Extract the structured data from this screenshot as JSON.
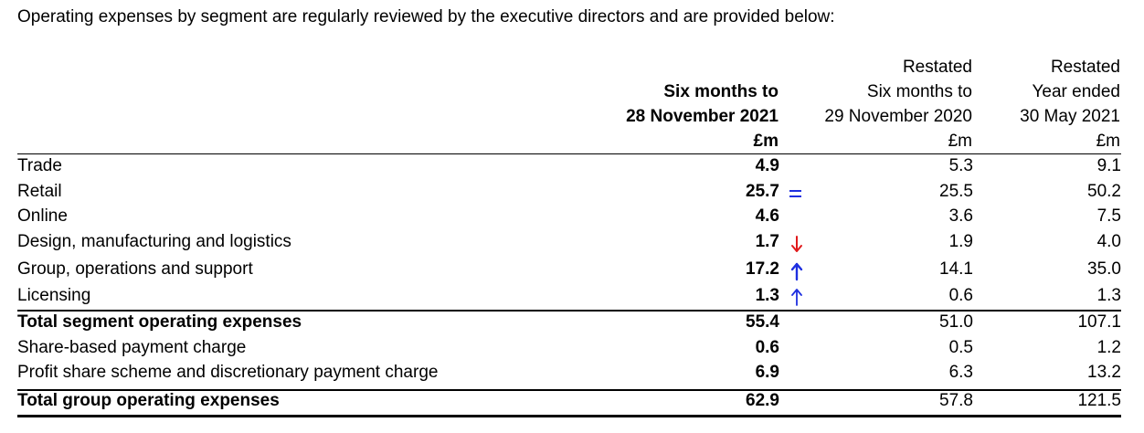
{
  "intro": "Operating expenses by segment are regularly reviewed by the executive directors and are provided below:",
  "columns": [
    {
      "line1": "",
      "line2": "Six months to",
      "line3": "28 November 2021",
      "unit": "£m"
    },
    {
      "line1": "Restated",
      "line2": "Six months to",
      "line3": "29 November 2020",
      "unit": "£m"
    },
    {
      "line1": "Restated",
      "line2": "Year ended",
      "line3": "30 May 2021",
      "unit": "£m"
    }
  ],
  "rows": [
    {
      "label": "Trade",
      "v1": "4.9",
      "v2": "5.3",
      "v3": "9.1"
    },
    {
      "label": "Retail",
      "v1": "25.7",
      "v2": "25.5",
      "v3": "50.2",
      "mark": "="
    },
    {
      "label": "Online",
      "v1": "4.6",
      "v2": "3.6",
      "v3": "7.5"
    },
    {
      "label": "Design, manufacturing and logistics",
      "v1": "1.7",
      "v2": "1.9",
      "v3": "4.0",
      "mark": "down-arrow"
    },
    {
      "label": "Group, operations and support",
      "v1": "17.2",
      "v2": "14.1",
      "v3": "35.0",
      "mark": "up-arrow"
    },
    {
      "label": "Licensing",
      "v1": "1.3",
      "v2": "0.6",
      "v3": "1.3",
      "mark": "up-arrow"
    },
    {
      "label": "Total segment operating expenses",
      "v1": "55.4",
      "v2": "51.0",
      "v3": "107.1"
    },
    {
      "label": "Share-based payment charge",
      "v1": "0.6",
      "v2": "0.5",
      "v3": "1.2"
    },
    {
      "label": "Profit share scheme and discretionary payment charge",
      "v1": "6.9",
      "v2": "6.3",
      "v3": "13.2"
    },
    {
      "label": "Total group operating expenses",
      "v1": "62.9",
      "v2": "57.8",
      "v3": "121.5"
    }
  ],
  "colors": {
    "annotation_blue": "#1e2fe0",
    "annotation_red": "#e0191b"
  }
}
